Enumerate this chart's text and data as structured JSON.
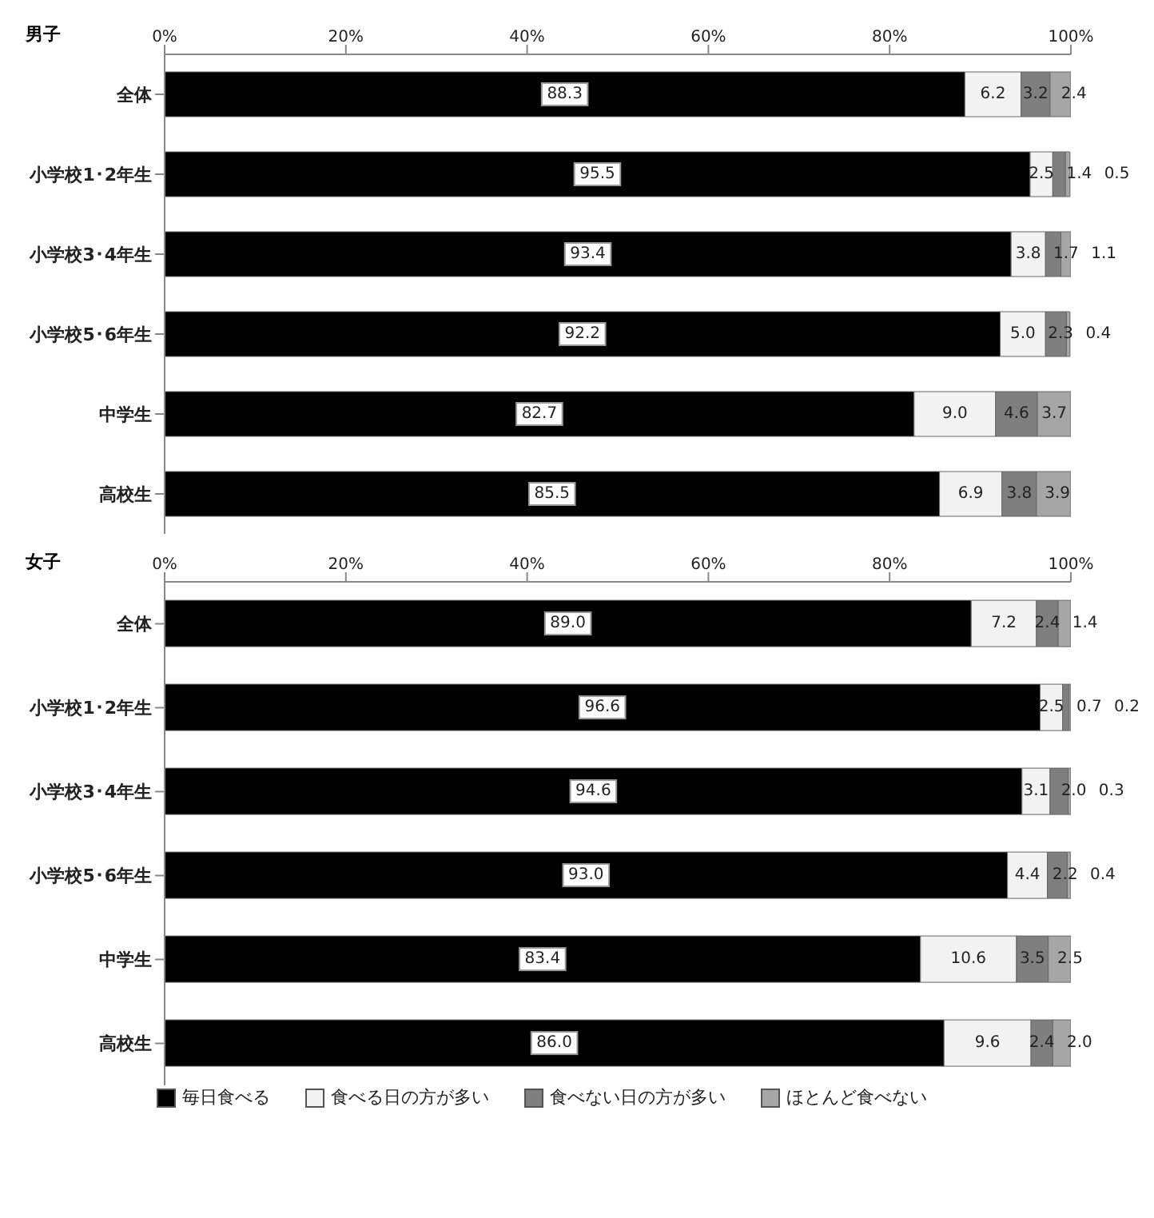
{
  "chart_data": [
    {
      "type": "bar",
      "title": "男子",
      "orientation": "horizontal",
      "stacked": true,
      "grid": false,
      "legend": false,
      "categories": [
        "全体",
        "小学校1･2年生",
        "小学校3･4年生",
        "小学校5･6年生",
        "中学生",
        "高校生"
      ],
      "xlim": [
        0,
        100
      ],
      "xticks": [
        {
          "value": 0,
          "label": "0%"
        },
        {
          "value": 20,
          "label": "20%"
        },
        {
          "value": 40,
          "label": "40%"
        },
        {
          "value": 60,
          "label": "60%"
        },
        {
          "value": 80,
          "label": "80%"
        },
        {
          "value": 100,
          "label": "100%"
        }
      ],
      "series": [
        {
          "color": "#000000",
          "values": [
            88.3,
            95.5,
            93.4,
            92.2,
            82.7,
            85.5
          ],
          "value_labels": [
            "88.3",
            "95.5",
            "93.4",
            "92.2",
            "82.7",
            "85.5"
          ]
        },
        {
          "color": "#f2f2f2",
          "values": [
            6.2,
            2.5,
            3.8,
            5.0,
            9.0,
            6.9
          ],
          "value_labels": [
            "6.2",
            "2.5",
            "3.8",
            "5.0",
            "9.0",
            "6.9"
          ]
        },
        {
          "color": "#7f7f7f",
          "values": [
            3.2,
            1.4,
            1.7,
            2.3,
            4.6,
            3.8
          ],
          "value_labels": [
            "3.2",
            "1.4",
            "1.7",
            "2.3",
            "4.6",
            "3.8"
          ]
        },
        {
          "color": "#a6a6a6",
          "values": [
            2.4,
            0.5,
            1.1,
            0.4,
            3.7,
            3.9
          ],
          "value_labels": [
            "2.4",
            "0.5",
            "1.1",
            "0.4",
            "3.7",
            "3.9"
          ]
        }
      ]
    },
    {
      "type": "bar",
      "title": "女子",
      "orientation": "horizontal",
      "stacked": true,
      "grid": false,
      "legend": "bottom",
      "categories": [
        "全体",
        "小学校1･2年生",
        "小学校3･4年生",
        "小学校5･6年生",
        "中学生",
        "高校生"
      ],
      "xlim": [
        0,
        100
      ],
      "xticks": [
        {
          "value": 0,
          "label": "0%"
        },
        {
          "value": 20,
          "label": "20%"
        },
        {
          "value": 40,
          "label": "40%"
        },
        {
          "value": 60,
          "label": "60%"
        },
        {
          "value": 80,
          "label": "80%"
        },
        {
          "value": 100,
          "label": "100%"
        }
      ],
      "series": [
        {
          "name": "毎日食べる",
          "color": "#000000",
          "values": [
            89.0,
            96.6,
            94.6,
            93.0,
            83.4,
            86.0
          ],
          "value_labels": [
            "89.0",
            "96.6",
            "94.6",
            "93.0",
            "83.4",
            "86.0"
          ]
        },
        {
          "name": "食べる日の方が多い",
          "color": "#f2f2f2",
          "values": [
            7.2,
            2.5,
            3.1,
            4.4,
            10.6,
            9.6
          ],
          "value_labels": [
            "7.2",
            "2.5",
            "3.1",
            "4.4",
            "10.6",
            "9.6"
          ]
        },
        {
          "name": "食べない日の方が多い",
          "color": "#7f7f7f",
          "values": [
            2.4,
            0.7,
            2.0,
            2.2,
            3.5,
            2.4
          ],
          "value_labels": [
            "2.4",
            "0.7",
            "2.0",
            "2.2",
            "3.5",
            "2.4"
          ]
        },
        {
          "name": "ほとんど食べない",
          "color": "#a6a6a6",
          "values": [
            1.4,
            0.2,
            0.3,
            0.4,
            2.5,
            2.0
          ],
          "value_labels": [
            "1.4",
            "0.2",
            "0.3",
            "0.4",
            "2.5",
            "2.0"
          ]
        }
      ]
    }
  ]
}
